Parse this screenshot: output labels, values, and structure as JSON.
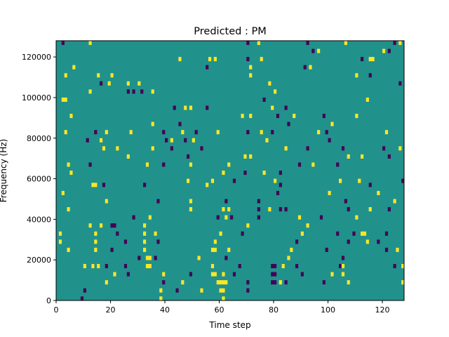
{
  "chart_data": {
    "type": "heatmap",
    "title": "Predicted : PM",
    "xlabel": "Time step",
    "ylabel": "Frequency (Hz)",
    "xlim": [
      0,
      128
    ],
    "ylim": [
      0,
      128000
    ],
    "xticks": [
      0,
      20,
      40,
      60,
      80,
      100,
      120
    ],
    "yticks": [
      0,
      20000,
      40000,
      60000,
      80000,
      100000,
      120000
    ],
    "grid": false,
    "legend": "none",
    "colormap": {
      "background": "#21918c",
      "high": "#fde725",
      "low": "#440154"
    },
    "value_levels": {
      "low": -1,
      "background": 0,
      "high": 1
    },
    "cell_size": {
      "time_steps": 1,
      "frequency_hz": 2000
    },
    "cells": [
      {
        "t": 2,
        "f": 126000,
        "v": -1
      },
      {
        "t": 12,
        "f": 126000,
        "v": 1
      },
      {
        "t": 70,
        "f": 126000,
        "v": -1
      },
      {
        "t": 74,
        "f": 126000,
        "v": 1
      },
      {
        "t": 92,
        "f": 126000,
        "v": -1
      },
      {
        "t": 106,
        "f": 126000,
        "v": 1
      },
      {
        "t": 124,
        "f": 126000,
        "v": -1
      },
      {
        "t": 126,
        "f": 126000,
        "v": 1
      },
      {
        "t": 94,
        "f": 122000,
        "v": -1
      },
      {
        "t": 96,
        "f": 122000,
        "v": 1
      },
      {
        "t": 120,
        "f": 122000,
        "v": 1
      },
      {
        "t": 122,
        "f": 122000,
        "v": -1
      },
      {
        "t": 45,
        "f": 118000,
        "v": 1
      },
      {
        "t": 56,
        "f": 118000,
        "v": 1
      },
      {
        "t": 58,
        "f": 118000,
        "v": 1
      },
      {
        "t": 70,
        "f": 118000,
        "v": -1
      },
      {
        "t": 75,
        "f": 118000,
        "v": 1
      },
      {
        "t": 112,
        "f": 118000,
        "v": -1
      },
      {
        "t": 115,
        "f": 118000,
        "v": 1
      },
      {
        "t": 116,
        "f": 118000,
        "v": 1
      },
      {
        "t": 6,
        "f": 114000,
        "v": 1
      },
      {
        "t": 55,
        "f": 114000,
        "v": -1
      },
      {
        "t": 71,
        "f": 114000,
        "v": 1
      },
      {
        "t": 91,
        "f": 114000,
        "v": -1
      },
      {
        "t": 93,
        "f": 114000,
        "v": 1
      },
      {
        "t": 3,
        "f": 110000,
        "v": 1
      },
      {
        "t": 15,
        "f": 110000,
        "v": 1
      },
      {
        "t": 20,
        "f": 110000,
        "v": 1
      },
      {
        "t": 71,
        "f": 110000,
        "v": 1
      },
      {
        "t": 110,
        "f": 110000,
        "v": 1
      },
      {
        "t": 115,
        "f": 110000,
        "v": -1
      },
      {
        "t": 16,
        "f": 106000,
        "v": -1
      },
      {
        "t": 19,
        "f": 106000,
        "v": 1
      },
      {
        "t": 26,
        "f": 106000,
        "v": 1
      },
      {
        "t": 30,
        "f": 106000,
        "v": 1
      },
      {
        "t": 78,
        "f": 106000,
        "v": 1
      },
      {
        "t": 126,
        "f": 106000,
        "v": -1
      },
      {
        "t": 12,
        "f": 102000,
        "v": 1
      },
      {
        "t": 26,
        "f": 102000,
        "v": -1
      },
      {
        "t": 28,
        "f": 102000,
        "v": -1
      },
      {
        "t": 31,
        "f": 102000,
        "v": -1
      },
      {
        "t": 35,
        "f": 102000,
        "v": 1
      },
      {
        "t": 80,
        "f": 102000,
        "v": 1
      },
      {
        "t": 2,
        "f": 98000,
        "v": 1
      },
      {
        "t": 3,
        "f": 98000,
        "v": 1
      },
      {
        "t": 76,
        "f": 98000,
        "v": -1
      },
      {
        "t": 114,
        "f": 98000,
        "v": 1
      },
      {
        "t": 43,
        "f": 94000,
        "v": -1
      },
      {
        "t": 47,
        "f": 94000,
        "v": 1
      },
      {
        "t": 49,
        "f": 94000,
        "v": 1
      },
      {
        "t": 55,
        "f": 94000,
        "v": -1
      },
      {
        "t": 79,
        "f": 94000,
        "v": 1
      },
      {
        "t": 84,
        "f": 94000,
        "v": -1
      },
      {
        "t": 5,
        "f": 90000,
        "v": 1
      },
      {
        "t": 68,
        "f": 90000,
        "v": 1
      },
      {
        "t": 71,
        "f": 90000,
        "v": 1
      },
      {
        "t": 81,
        "f": 90000,
        "v": -1
      },
      {
        "t": 87,
        "f": 90000,
        "v": 1
      },
      {
        "t": 98,
        "f": 90000,
        "v": -1
      },
      {
        "t": 110,
        "f": 90000,
        "v": 1
      },
      {
        "t": 35,
        "f": 86000,
        "v": 1
      },
      {
        "t": 45,
        "f": 86000,
        "v": -1
      },
      {
        "t": 85,
        "f": 86000,
        "v": -1
      },
      {
        "t": 101,
        "f": 86000,
        "v": 1
      },
      {
        "t": 3,
        "f": 82000,
        "v": 1
      },
      {
        "t": 14,
        "f": 82000,
        "v": -1
      },
      {
        "t": 18,
        "f": 82000,
        "v": 1
      },
      {
        "t": 27,
        "f": 82000,
        "v": 1
      },
      {
        "t": 39,
        "f": 82000,
        "v": -1
      },
      {
        "t": 46,
        "f": 82000,
        "v": 1
      },
      {
        "t": 51,
        "f": 82000,
        "v": -1
      },
      {
        "t": 59,
        "f": 82000,
        "v": 1
      },
      {
        "t": 70,
        "f": 82000,
        "v": -1
      },
      {
        "t": 75,
        "f": 82000,
        "v": 1
      },
      {
        "t": 79,
        "f": 82000,
        "v": -1
      },
      {
        "t": 96,
        "f": 82000,
        "v": 1
      },
      {
        "t": 99,
        "f": 82000,
        "v": -1
      },
      {
        "t": 121,
        "f": 82000,
        "v": 1
      },
      {
        "t": 11,
        "f": 78000,
        "v": -1
      },
      {
        "t": 16,
        "f": 78000,
        "v": 1
      },
      {
        "t": 40,
        "f": 78000,
        "v": -1
      },
      {
        "t": 42,
        "f": 78000,
        "v": 1
      },
      {
        "t": 47,
        "f": 78000,
        "v": -1
      },
      {
        "t": 50,
        "f": 78000,
        "v": 1
      },
      {
        "t": 77,
        "f": 78000,
        "v": 1
      },
      {
        "t": 100,
        "f": 78000,
        "v": -1
      },
      {
        "t": 17,
        "f": 74000,
        "v": 1
      },
      {
        "t": 22,
        "f": 74000,
        "v": 1
      },
      {
        "t": 35,
        "f": 74000,
        "v": 1
      },
      {
        "t": 42,
        "f": 74000,
        "v": -1
      },
      {
        "t": 53,
        "f": 74000,
        "v": -1
      },
      {
        "t": 84,
        "f": 74000,
        "v": 1
      },
      {
        "t": 92,
        "f": 74000,
        "v": -1
      },
      {
        "t": 105,
        "f": 74000,
        "v": -1
      },
      {
        "t": 120,
        "f": 74000,
        "v": -1
      },
      {
        "t": 126,
        "f": 74000,
        "v": 1
      },
      {
        "t": 26,
        "f": 70000,
        "v": 1
      },
      {
        "t": 48,
        "f": 70000,
        "v": -1
      },
      {
        "t": 69,
        "f": 70000,
        "v": 1
      },
      {
        "t": 71,
        "f": 70000,
        "v": 1
      },
      {
        "t": 107,
        "f": 70000,
        "v": 1
      },
      {
        "t": 112,
        "f": 70000,
        "v": 1
      },
      {
        "t": 122,
        "f": 70000,
        "v": -1
      },
      {
        "t": 4,
        "f": 66000,
        "v": 1
      },
      {
        "t": 12,
        "f": 66000,
        "v": -1
      },
      {
        "t": 33,
        "f": 66000,
        "v": 1
      },
      {
        "t": 39,
        "f": 66000,
        "v": -1
      },
      {
        "t": 49,
        "f": 66000,
        "v": 1
      },
      {
        "t": 63,
        "f": 66000,
        "v": 1
      },
      {
        "t": 89,
        "f": 66000,
        "v": -1
      },
      {
        "t": 94,
        "f": 66000,
        "v": 1
      },
      {
        "t": 103,
        "f": 66000,
        "v": -1
      },
      {
        "t": 5,
        "f": 62000,
        "v": 1
      },
      {
        "t": 61,
        "f": 62000,
        "v": 1
      },
      {
        "t": 69,
        "f": 62000,
        "v": -1
      },
      {
        "t": 76,
        "f": 62000,
        "v": 1
      },
      {
        "t": 82,
        "f": 62000,
        "v": -1
      },
      {
        "t": 48,
        "f": 58000,
        "v": 1
      },
      {
        "t": 57,
        "f": 58000,
        "v": 1
      },
      {
        "t": 65,
        "f": 58000,
        "v": -1
      },
      {
        "t": 80,
        "f": 58000,
        "v": 1
      },
      {
        "t": 104,
        "f": 58000,
        "v": 1
      },
      {
        "t": 111,
        "f": 58000,
        "v": 1
      },
      {
        "t": 127,
        "f": 58000,
        "v": -1
      },
      {
        "t": 13,
        "f": 56000,
        "v": 1
      },
      {
        "t": 14,
        "f": 56000,
        "v": 1
      },
      {
        "t": 17,
        "f": 56000,
        "v": -1
      },
      {
        "t": 32,
        "f": 56000,
        "v": -1
      },
      {
        "t": 55,
        "f": 56000,
        "v": 1
      },
      {
        "t": 82,
        "f": 56000,
        "v": -1
      },
      {
        "t": 115,
        "f": 56000,
        "v": -1
      },
      {
        "t": 2,
        "f": 52000,
        "v": 1
      },
      {
        "t": 81,
        "f": 52000,
        "v": -1
      },
      {
        "t": 100,
        "f": 52000,
        "v": 1
      },
      {
        "t": 118,
        "f": 52000,
        "v": 1
      },
      {
        "t": 18,
        "f": 48000,
        "v": 1
      },
      {
        "t": 37,
        "f": 48000,
        "v": -1
      },
      {
        "t": 49,
        "f": 48000,
        "v": 1
      },
      {
        "t": 62,
        "f": 48000,
        "v": -1
      },
      {
        "t": 74,
        "f": 48000,
        "v": -1
      },
      {
        "t": 106,
        "f": 48000,
        "v": -1
      },
      {
        "t": 124,
        "f": 48000,
        "v": 1
      },
      {
        "t": 4,
        "f": 44000,
        "v": 1
      },
      {
        "t": 49,
        "f": 44000,
        "v": 1
      },
      {
        "t": 61,
        "f": 44000,
        "v": 1
      },
      {
        "t": 63,
        "f": 44000,
        "v": 1
      },
      {
        "t": 74,
        "f": 44000,
        "v": -1
      },
      {
        "t": 78,
        "f": 44000,
        "v": 1
      },
      {
        "t": 82,
        "f": 44000,
        "v": -1
      },
      {
        "t": 84,
        "f": 44000,
        "v": -1
      },
      {
        "t": 107,
        "f": 44000,
        "v": -1
      },
      {
        "t": 115,
        "f": 44000,
        "v": 1
      },
      {
        "t": 122,
        "f": 44000,
        "v": -1
      },
      {
        "t": 28,
        "f": 40000,
        "v": -1
      },
      {
        "t": 34,
        "f": 40000,
        "v": 1
      },
      {
        "t": 59,
        "f": 40000,
        "v": -1
      },
      {
        "t": 62,
        "f": 40000,
        "v": 1
      },
      {
        "t": 64,
        "f": 40000,
        "v": -1
      },
      {
        "t": 74,
        "f": 40000,
        "v": -1
      },
      {
        "t": 89,
        "f": 40000,
        "v": 1
      },
      {
        "t": 97,
        "f": 40000,
        "v": -1
      },
      {
        "t": 110,
        "f": 40000,
        "v": 1
      },
      {
        "t": 12,
        "f": 36000,
        "v": 1
      },
      {
        "t": 16,
        "f": 36000,
        "v": 1
      },
      {
        "t": 20,
        "f": 36000,
        "v": -1
      },
      {
        "t": 21,
        "f": 36000,
        "v": -1
      },
      {
        "t": 32,
        "f": 36000,
        "v": 1
      },
      {
        "t": 70,
        "f": 36000,
        "v": 1
      },
      {
        "t": 92,
        "f": 36000,
        "v": 1
      },
      {
        "t": 1,
        "f": 32000,
        "v": 1
      },
      {
        "t": 14,
        "f": 32000,
        "v": 1
      },
      {
        "t": 22,
        "f": 32000,
        "v": -1
      },
      {
        "t": 32,
        "f": 32000,
        "v": 1
      },
      {
        "t": 36,
        "f": 32000,
        "v": 1
      },
      {
        "t": 60,
        "f": 32000,
        "v": 1
      },
      {
        "t": 68,
        "f": 32000,
        "v": -1
      },
      {
        "t": 90,
        "f": 32000,
        "v": 1
      },
      {
        "t": 103,
        "f": 32000,
        "v": -1
      },
      {
        "t": 109,
        "f": 32000,
        "v": -1
      },
      {
        "t": 112,
        "f": 32000,
        "v": 1
      },
      {
        "t": 113,
        "f": 32000,
        "v": 1
      },
      {
        "t": 121,
        "f": 32000,
        "v": -1
      },
      {
        "t": 1,
        "f": 28000,
        "v": 1
      },
      {
        "t": 14,
        "f": 28000,
        "v": 1
      },
      {
        "t": 25,
        "f": 28000,
        "v": -1
      },
      {
        "t": 32,
        "f": 28000,
        "v": 1
      },
      {
        "t": 37,
        "f": 28000,
        "v": -1
      },
      {
        "t": 58,
        "f": 28000,
        "v": 1
      },
      {
        "t": 88,
        "f": 28000,
        "v": -1
      },
      {
        "t": 107,
        "f": 28000,
        "v": -1
      },
      {
        "t": 114,
        "f": 28000,
        "v": 1
      },
      {
        "t": 118,
        "f": 28000,
        "v": -1
      },
      {
        "t": 4,
        "f": 24000,
        "v": 1
      },
      {
        "t": 14,
        "f": 24000,
        "v": 1
      },
      {
        "t": 20,
        "f": 24000,
        "v": -1
      },
      {
        "t": 32,
        "f": 24000,
        "v": 1
      },
      {
        "t": 57,
        "f": 24000,
        "v": 1
      },
      {
        "t": 58,
        "f": 24000,
        "v": 1
      },
      {
        "t": 63,
        "f": 24000,
        "v": 1
      },
      {
        "t": 86,
        "f": 24000,
        "v": 1
      },
      {
        "t": 99,
        "f": 24000,
        "v": -1
      },
      {
        "t": 121,
        "f": 24000,
        "v": -1
      },
      {
        "t": 125,
        "f": 24000,
        "v": 1
      },
      {
        "t": 30,
        "f": 20000,
        "v": -1
      },
      {
        "t": 33,
        "f": 20000,
        "v": 1
      },
      {
        "t": 34,
        "f": 20000,
        "v": 1
      },
      {
        "t": 36,
        "f": 20000,
        "v": -1
      },
      {
        "t": 52,
        "f": 20000,
        "v": 1
      },
      {
        "t": 62,
        "f": 20000,
        "v": -1
      },
      {
        "t": 85,
        "f": 20000,
        "v": 1
      },
      {
        "t": 105,
        "f": 20000,
        "v": -1
      },
      {
        "t": 10,
        "f": 16000,
        "v": 1
      },
      {
        "t": 13,
        "f": 16000,
        "v": 1
      },
      {
        "t": 15,
        "f": 16000,
        "v": 1
      },
      {
        "t": 18,
        "f": 16000,
        "v": -1
      },
      {
        "t": 25,
        "f": 16000,
        "v": -1
      },
      {
        "t": 33,
        "f": 16000,
        "v": 1
      },
      {
        "t": 34,
        "f": 16000,
        "v": 1
      },
      {
        "t": 57,
        "f": 16000,
        "v": 1
      },
      {
        "t": 67,
        "f": 16000,
        "v": -1
      },
      {
        "t": 79,
        "f": 16000,
        "v": -1
      },
      {
        "t": 80,
        "f": 16000,
        "v": -1
      },
      {
        "t": 83,
        "f": 16000,
        "v": 1
      },
      {
        "t": 88,
        "f": 16000,
        "v": -1
      },
      {
        "t": 104,
        "f": 16000,
        "v": -1
      },
      {
        "t": 105,
        "f": 16000,
        "v": 1
      },
      {
        "t": 124,
        "f": 16000,
        "v": -1
      },
      {
        "t": 127,
        "f": 16000,
        "v": 1
      },
      {
        "t": 21,
        "f": 12000,
        "v": 1
      },
      {
        "t": 26,
        "f": 12000,
        "v": -1
      },
      {
        "t": 39,
        "f": 12000,
        "v": 1
      },
      {
        "t": 49,
        "f": 12000,
        "v": -1
      },
      {
        "t": 57,
        "f": 12000,
        "v": 1
      },
      {
        "t": 58,
        "f": 12000,
        "v": 1
      },
      {
        "t": 61,
        "f": 12000,
        "v": 1
      },
      {
        "t": 65,
        "f": 12000,
        "v": -1
      },
      {
        "t": 79,
        "f": 12000,
        "v": -1
      },
      {
        "t": 80,
        "f": 12000,
        "v": -1
      },
      {
        "t": 90,
        "f": 12000,
        "v": -1
      },
      {
        "t": 101,
        "f": 12000,
        "v": 1
      },
      {
        "t": 105,
        "f": 12000,
        "v": 1
      },
      {
        "t": 18,
        "f": 8000,
        "v": 1
      },
      {
        "t": 39,
        "f": 8000,
        "v": -1
      },
      {
        "t": 46,
        "f": 8000,
        "v": 1
      },
      {
        "t": 59,
        "f": 8000,
        "v": 1
      },
      {
        "t": 60,
        "f": 8000,
        "v": 1
      },
      {
        "t": 61,
        "f": 8000,
        "v": 1
      },
      {
        "t": 62,
        "f": 8000,
        "v": 1
      },
      {
        "t": 70,
        "f": 8000,
        "v": -1
      },
      {
        "t": 79,
        "f": 8000,
        "v": -1
      },
      {
        "t": 80,
        "f": 8000,
        "v": -1
      },
      {
        "t": 82,
        "f": 8000,
        "v": 1
      },
      {
        "t": 84,
        "f": 8000,
        "v": -1
      },
      {
        "t": 98,
        "f": 8000,
        "v": -1
      },
      {
        "t": 107,
        "f": 8000,
        "v": 1
      },
      {
        "t": 127,
        "f": 8000,
        "v": 1
      },
      {
        "t": 10,
        "f": 4000,
        "v": -1
      },
      {
        "t": 38,
        "f": 4000,
        "v": 1
      },
      {
        "t": 44,
        "f": 4000,
        "v": -1
      },
      {
        "t": 53,
        "f": 4000,
        "v": 1
      },
      {
        "t": 60,
        "f": 4000,
        "v": 1
      },
      {
        "t": 61,
        "f": 4000,
        "v": 1
      },
      {
        "t": 70,
        "f": 4000,
        "v": -1
      },
      {
        "t": 9,
        "f": 0,
        "v": -1
      },
      {
        "t": 38,
        "f": 0,
        "v": 1
      },
      {
        "t": 61,
        "f": 0,
        "v": 1
      }
    ]
  }
}
